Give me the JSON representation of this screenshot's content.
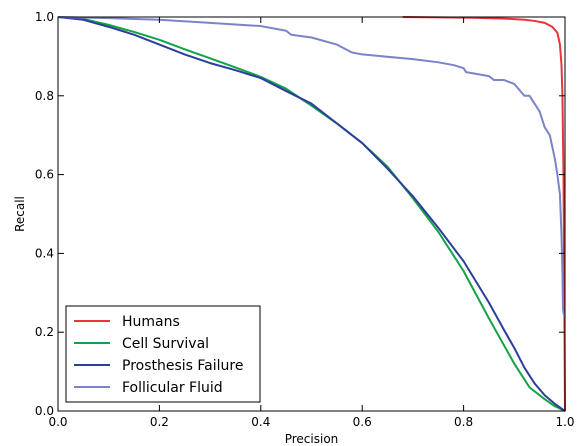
{
  "chart_data": {
    "type": "line",
    "title": "",
    "xlabel": "Precision",
    "ylabel": "Recall",
    "xlim": [
      0,
      1
    ],
    "ylim": [
      0,
      1
    ],
    "xticks": [
      "0.0",
      "0.2",
      "0.4",
      "0.6",
      "0.8",
      "1.0"
    ],
    "yticks": [
      "0.0",
      "0.2",
      "0.4",
      "0.6",
      "0.8",
      "1.0"
    ],
    "grid": false,
    "legend_position": "bottom-left",
    "series": [
      {
        "name": "Humans",
        "color": "#e8353a",
        "points": [
          [
            0.68,
            1.0
          ],
          [
            0.75,
            0.999
          ],
          [
            0.82,
            0.998
          ],
          [
            0.88,
            0.996
          ],
          [
            0.92,
            0.993
          ],
          [
            0.94,
            0.99
          ],
          [
            0.96,
            0.985
          ],
          [
            0.975,
            0.975
          ],
          [
            0.985,
            0.96
          ],
          [
            0.99,
            0.93
          ],
          [
            0.993,
            0.88
          ],
          [
            0.995,
            0.8
          ],
          [
            0.997,
            0.6
          ],
          [
            0.998,
            0.4
          ],
          [
            0.999,
            0.2
          ],
          [
            1.0,
            0.0
          ]
        ]
      },
      {
        "name": "Cell Survival",
        "color": "#13a246",
        "points": [
          [
            0.0,
            1.0
          ],
          [
            0.05,
            0.995
          ],
          [
            0.1,
            0.98
          ],
          [
            0.15,
            0.962
          ],
          [
            0.2,
            0.942
          ],
          [
            0.25,
            0.918
          ],
          [
            0.3,
            0.895
          ],
          [
            0.35,
            0.872
          ],
          [
            0.4,
            0.848
          ],
          [
            0.45,
            0.818
          ],
          [
            0.5,
            0.775
          ],
          [
            0.55,
            0.73
          ],
          [
            0.6,
            0.68
          ],
          [
            0.65,
            0.62
          ],
          [
            0.7,
            0.54
          ],
          [
            0.75,
            0.455
          ],
          [
            0.8,
            0.355
          ],
          [
            0.85,
            0.235
          ],
          [
            0.9,
            0.12
          ],
          [
            0.93,
            0.06
          ],
          [
            0.96,
            0.03
          ],
          [
            0.98,
            0.012
          ],
          [
            1.0,
            0.0
          ]
        ]
      },
      {
        "name": "Prosthesis Failure",
        "color": "#2c3e9c",
        "points": [
          [
            0.0,
            1.0
          ],
          [
            0.05,
            0.993
          ],
          [
            0.1,
            0.975
          ],
          [
            0.15,
            0.955
          ],
          [
            0.2,
            0.93
          ],
          [
            0.25,
            0.905
          ],
          [
            0.3,
            0.883
          ],
          [
            0.35,
            0.865
          ],
          [
            0.4,
            0.845
          ],
          [
            0.45,
            0.812
          ],
          [
            0.5,
            0.78
          ],
          [
            0.55,
            0.73
          ],
          [
            0.6,
            0.68
          ],
          [
            0.65,
            0.615
          ],
          [
            0.7,
            0.545
          ],
          [
            0.75,
            0.465
          ],
          [
            0.8,
            0.38
          ],
          [
            0.85,
            0.275
          ],
          [
            0.88,
            0.205
          ],
          [
            0.9,
            0.16
          ],
          [
            0.92,
            0.11
          ],
          [
            0.94,
            0.07
          ],
          [
            0.96,
            0.04
          ],
          [
            0.98,
            0.018
          ],
          [
            1.0,
            0.0
          ]
        ]
      },
      {
        "name": "Follicular Fluid",
        "color": "#7b83c9",
        "points": [
          [
            0.0,
            1.0
          ],
          [
            0.1,
            0.997
          ],
          [
            0.2,
            0.993
          ],
          [
            0.3,
            0.985
          ],
          [
            0.4,
            0.977
          ],
          [
            0.45,
            0.965
          ],
          [
            0.46,
            0.955
          ],
          [
            0.5,
            0.948
          ],
          [
            0.55,
            0.93
          ],
          [
            0.58,
            0.91
          ],
          [
            0.6,
            0.905
          ],
          [
            0.7,
            0.893
          ],
          [
            0.75,
            0.885
          ],
          [
            0.78,
            0.878
          ],
          [
            0.8,
            0.87
          ],
          [
            0.805,
            0.86
          ],
          [
            0.85,
            0.85
          ],
          [
            0.86,
            0.84
          ],
          [
            0.88,
            0.84
          ],
          [
            0.9,
            0.83
          ],
          [
            0.91,
            0.815
          ],
          [
            0.92,
            0.8
          ],
          [
            0.93,
            0.8
          ],
          [
            0.94,
            0.78
          ],
          [
            0.95,
            0.76
          ],
          [
            0.955,
            0.74
          ],
          [
            0.96,
            0.72
          ],
          [
            0.97,
            0.7
          ],
          [
            0.975,
            0.67
          ],
          [
            0.98,
            0.64
          ],
          [
            0.985,
            0.6
          ],
          [
            0.99,
            0.55
          ],
          [
            0.993,
            0.45
          ],
          [
            0.995,
            0.35
          ],
          [
            0.996,
            0.26
          ],
          [
            0.997,
            0.25
          ],
          [
            0.999,
            0.24
          ],
          [
            1.0,
            0.238
          ]
        ]
      }
    ]
  }
}
